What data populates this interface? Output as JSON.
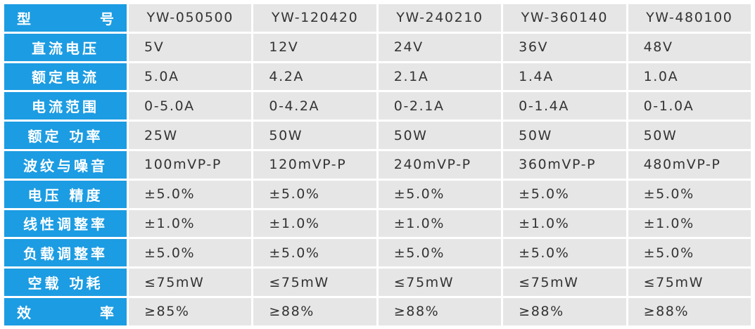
{
  "table": {
    "rows": [
      {
        "label": "型号",
        "spread": true,
        "values": [
          "YW-050500",
          "YW-120420",
          "YW-240210",
          "YW-360140",
          "YW-480100"
        ]
      },
      {
        "label": "直流电压",
        "values": [
          "5V",
          "12V",
          "24V",
          "36V",
          "48V"
        ]
      },
      {
        "label": "额定电流",
        "values": [
          "5.0A",
          "4.2A",
          "2.1A",
          "1.4A",
          "1.0A"
        ]
      },
      {
        "label": "电流范围",
        "values": [
          "0-5.0A",
          "0-4.2A",
          "0-2.1A",
          "0-1.4A",
          "0-1.0A"
        ]
      },
      {
        "label": "额定 功率",
        "values": [
          "25W",
          "50W",
          "50W",
          "50W",
          "50W"
        ]
      },
      {
        "label": "波纹与噪音",
        "values": [
          "100mVP-P",
          "120mVP-P",
          "240mVP-P",
          "360mVP-P",
          "480mVP-P"
        ]
      },
      {
        "label": "电压 精度",
        "values": [
          "±5.0%",
          "±5.0%",
          "±5.0%",
          "±5.0%",
          "±5.0%"
        ]
      },
      {
        "label": "线性调整率",
        "values": [
          "±1.0%",
          "±1.0%",
          "±1.0%",
          "±1.0%",
          "±1.0%"
        ]
      },
      {
        "label": "负载调整率",
        "values": [
          "±5.0%",
          "±5.0%",
          "±5.0%",
          "±5.0%",
          "±5.0%"
        ]
      },
      {
        "label": "空载 功耗",
        "values": [
          "≤75mW",
          "≤75mW",
          "≤75mW",
          "≤75mW",
          "≤75mW"
        ]
      },
      {
        "label": "效率",
        "spread": true,
        "values": [
          "≥85%",
          "≥88%",
          "≥88%",
          "≥88%",
          "≥88%"
        ]
      }
    ]
  },
  "colors": {
    "header_bg": "#1c9ce2",
    "header_text": "#ffffff",
    "cell_bg": "#e6e6e6",
    "cell_text": "#333333"
  }
}
